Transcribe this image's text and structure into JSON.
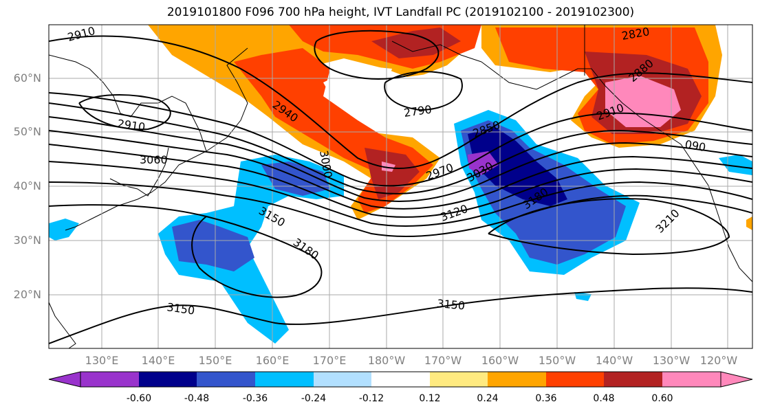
{
  "title": "2019101800 F096 700 hPa height, IVT Landfall PC (2019102100 - 2019102300)",
  "lat_labels": [
    "60°N",
    "50°N",
    "40°N",
    "30°N",
    "20°N"
  ],
  "lon_labels": [
    "130°E",
    "140°E",
    "150°E",
    "160°E",
    "170°E",
    "180°W",
    "170°W",
    "160°W",
    "150°W",
    "140°W",
    "130°W",
    "120°W"
  ],
  "colorbar": {
    "ticks": [
      "-0.60",
      "-0.48",
      "-0.36",
      "-0.24",
      "-0.12",
      "0.12",
      "0.24",
      "0.36",
      "0.48",
      "0.60"
    ],
    "colors": [
      "#9933cc",
      "#00008b",
      "#3355cc",
      "#00bfff",
      "#b2e0ff",
      "#ffffff",
      "#ffea80",
      "#ffa500",
      "#ff4000",
      "#b22222",
      "#ff88bb"
    ]
  },
  "contour_labels": [
    "2910",
    "2820",
    "2880",
    "2910",
    "2940",
    "2790",
    "2910",
    "3060",
    "3000",
    "2850",
    "2970",
    "3030",
    "3120",
    "3180",
    "3150",
    "3180",
    "3210",
    "3150",
    "3150",
    "090"
  ]
}
